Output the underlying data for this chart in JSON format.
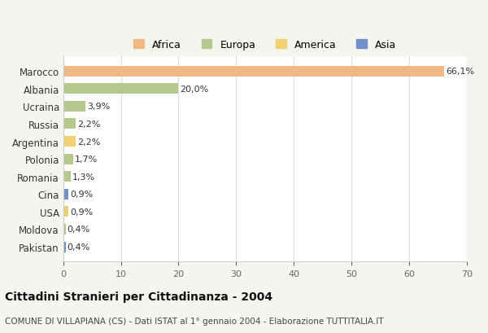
{
  "countries": [
    "Marocco",
    "Albania",
    "Ucraina",
    "Russia",
    "Argentina",
    "Polonia",
    "Romania",
    "Cina",
    "USA",
    "Moldova",
    "Pakistan"
  ],
  "values": [
    66.1,
    20.0,
    3.9,
    2.2,
    2.2,
    1.7,
    1.3,
    0.9,
    0.9,
    0.4,
    0.4
  ],
  "labels": [
    "66,1%",
    "20,0%",
    "3,9%",
    "2,2%",
    "2,2%",
    "1,7%",
    "1,3%",
    "0,9%",
    "0,9%",
    "0,4%",
    "0,4%"
  ],
  "colors": [
    "#f0b984",
    "#b5c98e",
    "#b5c98e",
    "#b5c98e",
    "#f0d070",
    "#b5c98e",
    "#b5c98e",
    "#7090c8",
    "#f0d070",
    "#b5c98e",
    "#7090c8"
  ],
  "legend": [
    {
      "label": "Africa",
      "color": "#f0b984"
    },
    {
      "label": "Europa",
      "color": "#b5c98e"
    },
    {
      "label": "America",
      "color": "#f0d070"
    },
    {
      "label": "Asia",
      "color": "#7090c8"
    }
  ],
  "xlim": [
    0,
    70
  ],
  "xticks": [
    0,
    10,
    20,
    30,
    40,
    50,
    60,
    70
  ],
  "title": "Cittadini Stranieri per Cittadinanza - 2004",
  "subtitle": "COMUNE DI VILLAPIANA (CS) - Dati ISTAT al 1° gennaio 2004 - Elaborazione TUTTITALIA.IT",
  "bg_color": "#f5f5f0",
  "plot_bg_color": "#ffffff"
}
